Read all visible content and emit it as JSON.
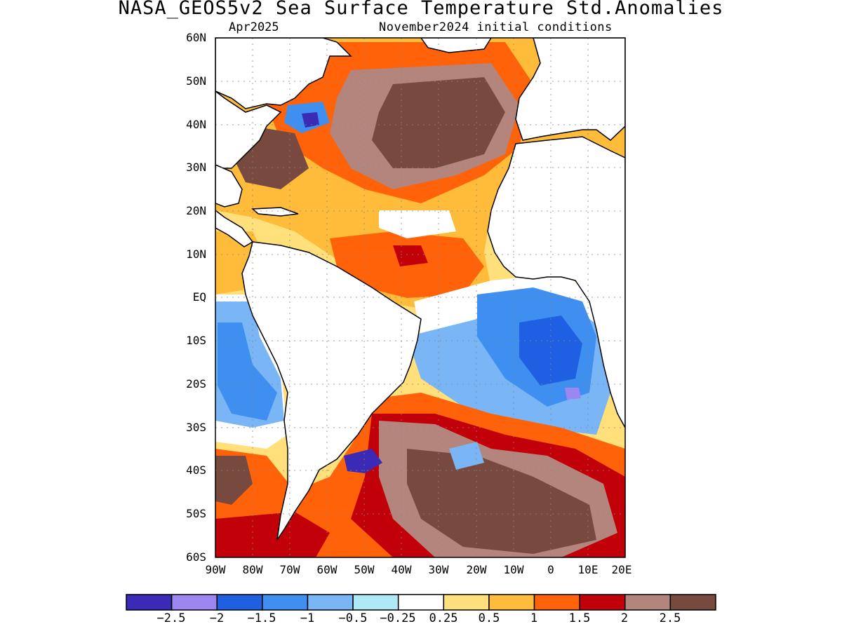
{
  "map": {
    "title": "NASA_GEOS5v2 Sea Surface Temperature Std.Anomalies",
    "subtitle_left": "Apr2025",
    "subtitle_right": "November2024 initial conditions",
    "lat_labels": [
      "60N",
      "50N",
      "40N",
      "30N",
      "20N",
      "10N",
      "EQ",
      "10S",
      "20S",
      "30S",
      "40S",
      "50S",
      "60S"
    ],
    "lon_labels": [
      "90W",
      "80W",
      "70W",
      "60W",
      "50W",
      "40W",
      "30W",
      "20W",
      "10W",
      "0",
      "10E",
      "20E"
    ],
    "extent": {
      "lon_min": -90,
      "lon_max": 20,
      "lat_min": -60,
      "lat_max": 60
    },
    "colorbar": {
      "colors": [
        "#3a2ab5",
        "#9b86f2",
        "#1f60e3",
        "#3f8ff0",
        "#7ab6f5",
        "#aee9f8",
        "#ffffff",
        "#ffe07a",
        "#ffbb3a",
        "#ff6208",
        "#c2000a",
        "#b3857c",
        "#784a3f"
      ],
      "labels": [
        "-2.5",
        "-2",
        "-1.5",
        "-1",
        "-0.5",
        "-0.25",
        "0.25",
        "0.5",
        "1",
        "1.5",
        "2",
        "2.5"
      ]
    }
  }
}
